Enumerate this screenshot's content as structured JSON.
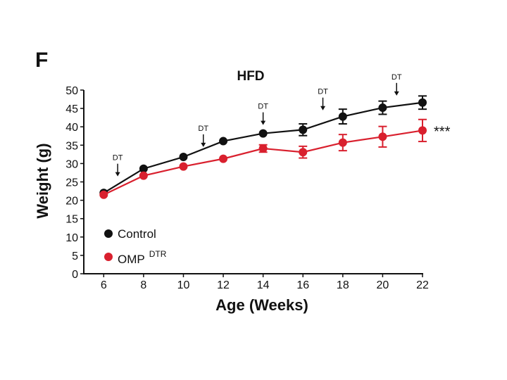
{
  "panel_label": "F",
  "chart_data": {
    "type": "line",
    "title": "HFD",
    "xlabel": "Age (Weeks)",
    "ylabel": "Weight (g)",
    "xlim": [
      5,
      22
    ],
    "ylim": [
      0,
      50
    ],
    "xticks": [
      6,
      8,
      10,
      12,
      14,
      16,
      18,
      20,
      22
    ],
    "yticks": [
      0,
      5,
      10,
      15,
      20,
      25,
      30,
      35,
      40,
      45,
      50
    ],
    "grid": false,
    "legend_position": "bottom-left",
    "series": [
      {
        "name": "Control",
        "superscript": "",
        "color": "#111111",
        "x": [
          6,
          8,
          10,
          12,
          14,
          16,
          18,
          20,
          22
        ],
        "y": [
          22.0,
          28.6,
          31.8,
          36.1,
          38.2,
          39.2,
          42.8,
          45.2,
          46.6
        ],
        "error": [
          0.4,
          0.5,
          0.5,
          0.5,
          0.6,
          1.6,
          2.0,
          1.8,
          1.8
        ]
      },
      {
        "name": "OMP",
        "superscript": "DTR",
        "color": "#d9202e",
        "x": [
          6,
          8,
          10,
          12,
          14,
          16,
          18,
          20,
          22
        ],
        "y": [
          21.5,
          26.7,
          29.2,
          31.3,
          34.1,
          33.1,
          35.7,
          37.3,
          39.0
        ],
        "error": [
          0.4,
          0.5,
          0.5,
          0.5,
          1.0,
          1.6,
          2.2,
          2.8,
          3.0
        ]
      }
    ],
    "annotations": {
      "arrows": [
        {
          "label": "DT",
          "x": 6.7,
          "y": 26.5
        },
        {
          "label": "DT",
          "x": 11.0,
          "y": 34.5
        },
        {
          "label": "DT",
          "x": 14.0,
          "y": 40.5
        },
        {
          "label": "DT",
          "x": 17.0,
          "y": 44.5
        },
        {
          "label": "DT",
          "x": 20.7,
          "y": 48.5
        }
      ],
      "significance": {
        "label": "***",
        "x": 22,
        "y": 39.0
      }
    }
  }
}
